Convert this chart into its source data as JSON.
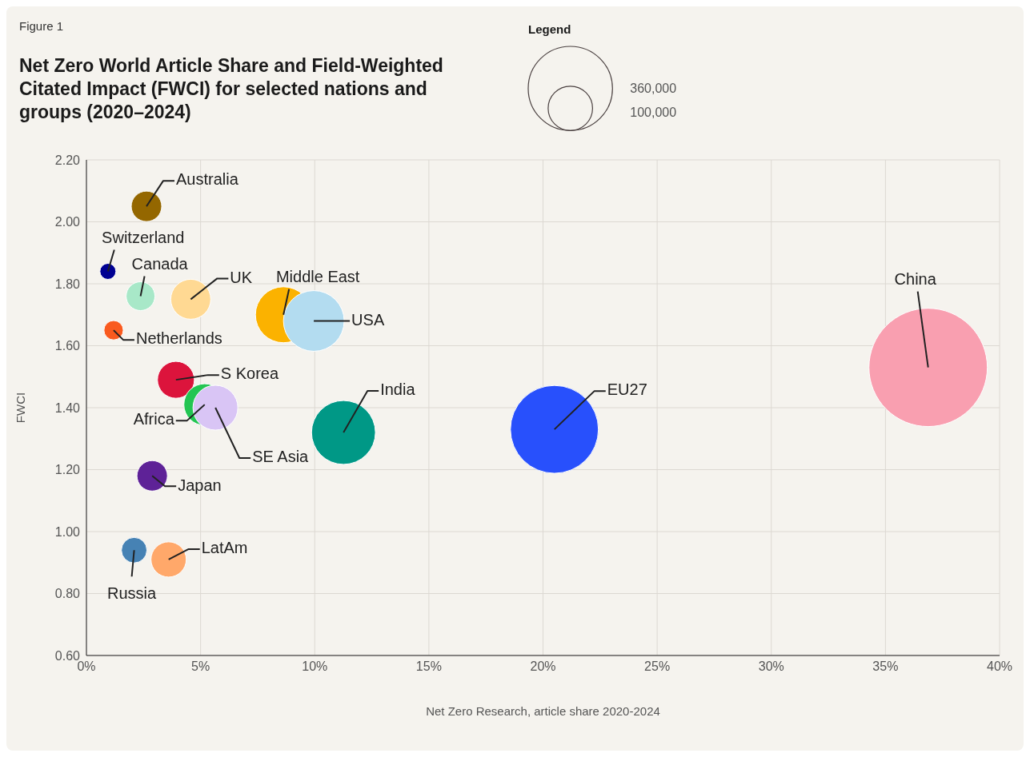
{
  "chart_data": {
    "type": "bubble",
    "title": "Net Zero World Article Share and Field-Weighted Citated Impact (FWCI) for selected nations and groups (2020–2024)",
    "annotations": [
      "Figure 1"
    ],
    "xlabel": "Net Zero Research, article share  2020-2024",
    "ylabel": "FWCI",
    "legend_title": "Legend",
    "size_legend": [
      {
        "value": 360000,
        "label": "360,000"
      },
      {
        "value": 100000,
        "label": "100,000"
      }
    ],
    "xlim": [
      0,
      40
    ],
    "xticks": [
      {
        "value": 0,
        "label": "0%"
      },
      {
        "value": 5,
        "label": "5%"
      },
      {
        "value": 10,
        "label": "10%"
      },
      {
        "value": 15,
        "label": "15%"
      },
      {
        "value": 20,
        "label": "20%"
      },
      {
        "value": 25,
        "label": "25%"
      },
      {
        "value": 30,
        "label": "30%"
      },
      {
        "value": 35,
        "label": "35%"
      },
      {
        "value": 40,
        "label": "40%"
      }
    ],
    "ylim": [
      0.6,
      2.2
    ],
    "yticks": [
      {
        "value": 0.6,
        "label": "0.60"
      },
      {
        "value": 0.8,
        "label": "0.80"
      },
      {
        "value": 1,
        "label": "1.00"
      },
      {
        "value": 1.2,
        "label": "1.20"
      },
      {
        "value": 1.4,
        "label": "1.40"
      },
      {
        "value": 1.6,
        "label": "1.60"
      },
      {
        "value": 1.8,
        "label": "1.80"
      },
      {
        "value": 2,
        "label": "2.00"
      },
      {
        "value": 2.2,
        "label": "2.20"
      }
    ],
    "grid": true,
    "marker": "circle",
    "series": [
      {
        "name": "Australia",
        "color": "#946700",
        "x": [
          2.63
        ],
        "values": [
          2.05
        ],
        "sizes": [
          47000
        ]
      },
      {
        "name": "Switzerland",
        "color": "#000092",
        "x": [
          0.94
        ],
        "values": [
          1.84
        ],
        "sizes": [
          13000
        ]
      },
      {
        "name": "Canada",
        "color": "#a8e8c8",
        "x": [
          2.37
        ],
        "values": [
          1.76
        ],
        "sizes": [
          42000
        ]
      },
      {
        "name": "UK",
        "color": "#ffd993",
        "x": [
          4.57
        ],
        "values": [
          1.75
        ],
        "sizes": [
          81000
        ]
      },
      {
        "name": "Middle East",
        "color": "#fbb200",
        "x": [
          8.63
        ],
        "values": [
          1.7
        ],
        "sizes": [
          159000
        ]
      },
      {
        "name": "USA",
        "color": "#b3dcf0",
        "x": [
          9.96
        ],
        "values": [
          1.68
        ],
        "sizes": [
          187000
        ]
      },
      {
        "name": "Netherlands",
        "color": "#f95a1e",
        "x": [
          1.19
        ],
        "values": [
          1.65
        ],
        "sizes": [
          19000
        ]
      },
      {
        "name": "S Korea",
        "color": "#dc143c",
        "x": [
          3.92
        ],
        "values": [
          1.49
        ],
        "sizes": [
          69000
        ]
      },
      {
        "name": "Africa",
        "color": "#23c552",
        "x": [
          5.18
        ],
        "values": [
          1.41
        ],
        "sizes": [
          88000
        ]
      },
      {
        "name": "SE Asia",
        "color": "#d9c5f5",
        "x": [
          5.65
        ],
        "values": [
          1.4
        ],
        "sizes": [
          102000
        ]
      },
      {
        "name": "India",
        "color": "#009886",
        "x": [
          11.26
        ],
        "values": [
          1.32
        ],
        "sizes": [
          207000
        ]
      },
      {
        "name": "EU27",
        "color": "#2850fc",
        "x": [
          20.5
        ],
        "values": [
          1.33
        ],
        "sizes": [
          392000
        ]
      },
      {
        "name": "China",
        "color": "#f99fb0",
        "x": [
          36.87
        ],
        "values": [
          1.53
        ],
        "sizes": [
          710000
        ]
      },
      {
        "name": "Japan",
        "color": "#5e2297",
        "x": [
          2.88
        ],
        "values": [
          1.18
        ],
        "sizes": [
          47000
        ]
      },
      {
        "name": "Russia",
        "color": "#4682b4",
        "x": [
          2.09
        ],
        "values": [
          0.94
        ],
        "sizes": [
          33000
        ]
      },
      {
        "name": "LatAm",
        "color": "#ffa86a",
        "x": [
          3.6
        ],
        "values": [
          0.91
        ],
        "sizes": [
          63000
        ]
      }
    ]
  }
}
